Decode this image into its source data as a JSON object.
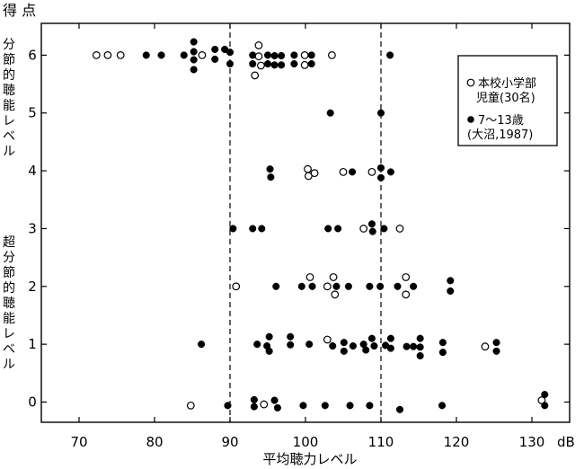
{
  "chart_data": {
    "type": "scatter",
    "title": "",
    "ylabel": "得 点",
    "xlabel": "平均聴力レベル",
    "x_unit": "dB",
    "xlim": [
      65,
      135
    ],
    "ylim": [
      -0.35,
      6.55
    ],
    "xticks": [
      70,
      80,
      90,
      100,
      110,
      120,
      130
    ],
    "yticks": [
      0,
      1,
      2,
      3,
      4,
      5,
      6
    ],
    "y_band_labels": [
      {
        "text": "分節的聴能レベル",
        "y_from": 6.3,
        "y_to": 3.6
      },
      {
        "text": "超分節的聴能レベル",
        "y_from": 3.3,
        "y_to": 0.6
      }
    ],
    "reference_lines_x": [
      90,
      110
    ],
    "legend_position": "top-right",
    "series": [
      {
        "name": "本校小学部児童(30名)",
        "marker": "open-circle",
        "points": [
          [
            72.3,
            6.0
          ],
          [
            73.8,
            6.0
          ],
          [
            75.5,
            6.0
          ],
          [
            86.3,
            6.0
          ],
          [
            93.8,
            6.17
          ],
          [
            93.8,
            5.98
          ],
          [
            93.3,
            5.65
          ],
          [
            94.1,
            5.82
          ],
          [
            99.9,
            6.0
          ],
          [
            99.9,
            5.83
          ],
          [
            103.5,
            6.0
          ],
          [
            100.3,
            4.03
          ],
          [
            100.4,
            3.91
          ],
          [
            101.2,
            3.96
          ],
          [
            105.0,
            3.98
          ],
          [
            108.8,
            3.98
          ],
          [
            107.7,
            3.0
          ],
          [
            112.5,
            3.0
          ],
          [
            90.8,
            2.0
          ],
          [
            100.6,
            2.16
          ],
          [
            102.9,
            2.0
          ],
          [
            103.7,
            2.16
          ],
          [
            103.9,
            1.86
          ],
          [
            113.3,
            2.16
          ],
          [
            113.3,
            1.86
          ],
          [
            102.9,
            1.08
          ],
          [
            123.8,
            0.96
          ],
          [
            84.8,
            -0.06
          ],
          [
            94.5,
            -0.04
          ],
          [
            131.3,
            0.03
          ]
        ]
      },
      {
        "name": "7～13歳(大沼,1987)",
        "marker": "filled-circle",
        "points": [
          [
            78.9,
            6.0
          ],
          [
            80.9,
            6.0
          ],
          [
            83.9,
            6.0
          ],
          [
            85.2,
            6.23
          ],
          [
            85.2,
            6.06
          ],
          [
            85.2,
            5.92
          ],
          [
            85.2,
            5.75
          ],
          [
            88.0,
            6.1
          ],
          [
            88.0,
            5.93
          ],
          [
            89.3,
            6.1
          ],
          [
            90.0,
            6.05
          ],
          [
            90.0,
            5.85
          ],
          [
            93.0,
            6.0
          ],
          [
            93.0,
            5.85
          ],
          [
            95.0,
            6.0
          ],
          [
            95.0,
            5.85
          ],
          [
            95.9,
            5.99
          ],
          [
            95.9,
            5.83
          ],
          [
            96.8,
            5.99
          ],
          [
            96.8,
            5.83
          ],
          [
            98.5,
            6.0
          ],
          [
            98.5,
            5.85
          ],
          [
            100.8,
            6.0
          ],
          [
            100.8,
            5.85
          ],
          [
            111.2,
            6.0
          ],
          [
            103.3,
            5.0
          ],
          [
            110.0,
            5.0
          ],
          [
            95.3,
            4.03
          ],
          [
            95.4,
            3.89
          ],
          [
            106.2,
            3.98
          ],
          [
            110.0,
            4.05
          ],
          [
            110.0,
            3.88
          ],
          [
            111.3,
            3.98
          ],
          [
            90.4,
            3.0
          ],
          [
            93.0,
            3.0
          ],
          [
            94.2,
            3.0
          ],
          [
            103.0,
            3.0
          ],
          [
            104.3,
            3.0
          ],
          [
            108.8,
            3.08
          ],
          [
            108.9,
            2.95
          ],
          [
            110.4,
            3.0
          ],
          [
            96.1,
            2.0
          ],
          [
            99.5,
            2.0
          ],
          [
            100.9,
            2.0
          ],
          [
            104.1,
            2.0
          ],
          [
            105.7,
            2.0
          ],
          [
            108.5,
            2.0
          ],
          [
            109.9,
            2.0
          ],
          [
            112.2,
            2.0
          ],
          [
            114.3,
            2.0
          ],
          [
            119.2,
            2.1
          ],
          [
            119.2,
            1.92
          ],
          [
            86.2,
            1.0
          ],
          [
            93.6,
            1.0
          ],
          [
            94.9,
            0.97
          ],
          [
            95.2,
            1.13
          ],
          [
            95.2,
            0.88
          ],
          [
            98.0,
            1.13
          ],
          [
            98.0,
            0.99
          ],
          [
            100.5,
            1.0
          ],
          [
            103.6,
            0.97
          ],
          [
            105.1,
            1.03
          ],
          [
            105.1,
            0.88
          ],
          [
            106.3,
            0.97
          ],
          [
            107.7,
            1.0
          ],
          [
            108.0,
            0.9
          ],
          [
            108.8,
            1.1
          ],
          [
            109.1,
            0.97
          ],
          [
            110.6,
            0.98
          ],
          [
            111.3,
            1.1
          ],
          [
            111.3,
            0.93
          ],
          [
            113.4,
            0.96
          ],
          [
            114.3,
            0.96
          ],
          [
            115.2,
            1.1
          ],
          [
            115.2,
            0.95
          ],
          [
            115.2,
            0.8
          ],
          [
            118.2,
            1.03
          ],
          [
            118.2,
            0.86
          ],
          [
            125.3,
            1.03
          ],
          [
            125.3,
            0.88
          ],
          [
            89.7,
            -0.06
          ],
          [
            93.2,
            0.04
          ],
          [
            93.2,
            -0.08
          ],
          [
            95.9,
            0.03
          ],
          [
            96.3,
            -0.1
          ],
          [
            99.7,
            -0.06
          ],
          [
            102.6,
            -0.06
          ],
          [
            105.9,
            -0.06
          ],
          [
            108.5,
            -0.06
          ],
          [
            112.5,
            -0.13
          ],
          [
            118.1,
            -0.06
          ],
          [
            131.7,
            0.13
          ],
          [
            131.7,
            -0.06
          ]
        ]
      }
    ]
  }
}
